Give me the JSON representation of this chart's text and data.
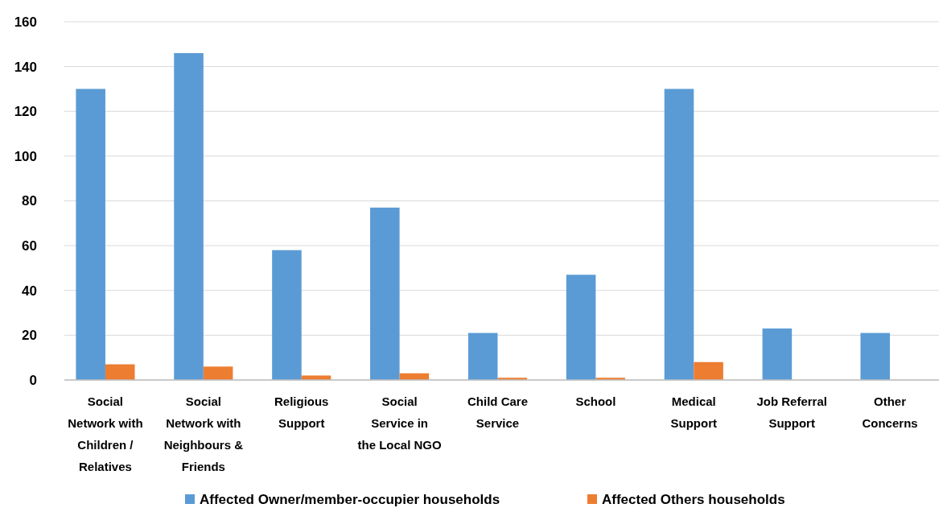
{
  "chart_data": {
    "type": "bar",
    "categories": [
      "Social Network with Children / Relatives",
      "Social Network with Neighbours & Friends",
      "Religious Support",
      "Social Service in the Local NGO",
      "Child Care Service",
      "School",
      "Medical Support",
      "Job Referral Support",
      "Other Concerns"
    ],
    "series": [
      {
        "name": "Affected Owner/member-occupier households",
        "color": "#5b9bd5",
        "values": [
          130,
          146,
          58,
          77,
          21,
          47,
          130,
          23,
          21
        ]
      },
      {
        "name": "Affected Others households",
        "color": "#ed7d31",
        "values": [
          7,
          6,
          2,
          3,
          1,
          1,
          8,
          0,
          0
        ]
      }
    ],
    "ylim": [
      0,
      160
    ],
    "yticks": [
      0,
      20,
      40,
      60,
      80,
      100,
      120,
      140,
      160
    ],
    "grid": "y",
    "legend": "bottom"
  }
}
